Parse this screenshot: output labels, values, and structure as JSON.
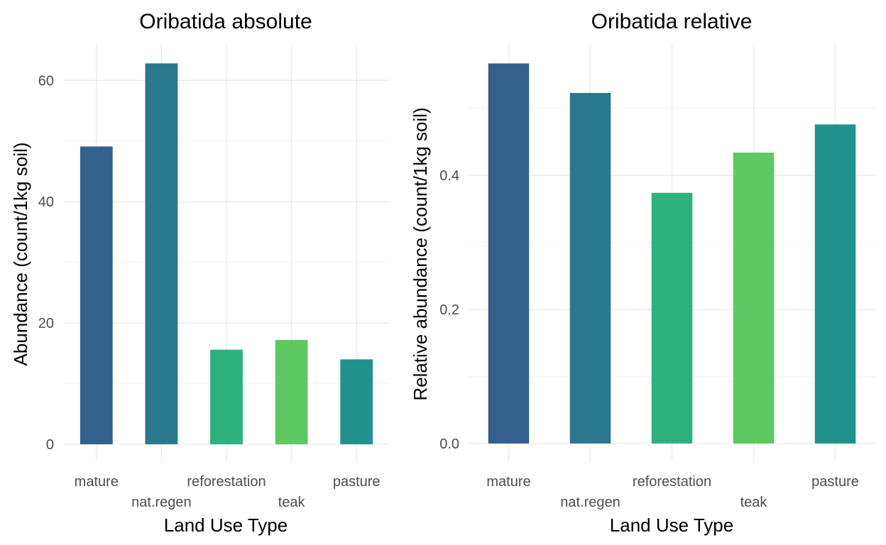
{
  "colors": {
    "mature": "#355f8d",
    "nat.regen": "#2a788e",
    "reforestation": "#2db27d",
    "teak": "#5ec962",
    "pasture": "#21918c"
  },
  "chart_data": [
    {
      "type": "bar",
      "title": "Oribatida absolute",
      "xlabel": "Land Use Type",
      "ylabel": "Abundance (count/1kg soil)",
      "categories": [
        "mature",
        "nat.regen",
        "reforestation",
        "teak",
        "pasture"
      ],
      "values": [
        49.1,
        62.8,
        15.6,
        17.2,
        14.0
      ],
      "yticks": [
        0,
        20,
        40,
        60
      ],
      "ylim": [
        -2.8,
        66
      ],
      "grid": true,
      "legend": "none"
    },
    {
      "type": "bar",
      "title": "Oribatida relative",
      "xlabel": "Land Use Type",
      "ylabel": "Relative abundance (count/1kg soil)",
      "categories": [
        "mature",
        "nat.regen",
        "reforestation",
        "teak",
        "pasture"
      ],
      "values": [
        0.567,
        0.523,
        0.374,
        0.434,
        0.476
      ],
      "yticks": [
        "0.0",
        "0.2",
        "0.4"
      ],
      "ylim": [
        -0.0265,
        0.596
      ],
      "grid": true,
      "legend": "none"
    }
  ]
}
